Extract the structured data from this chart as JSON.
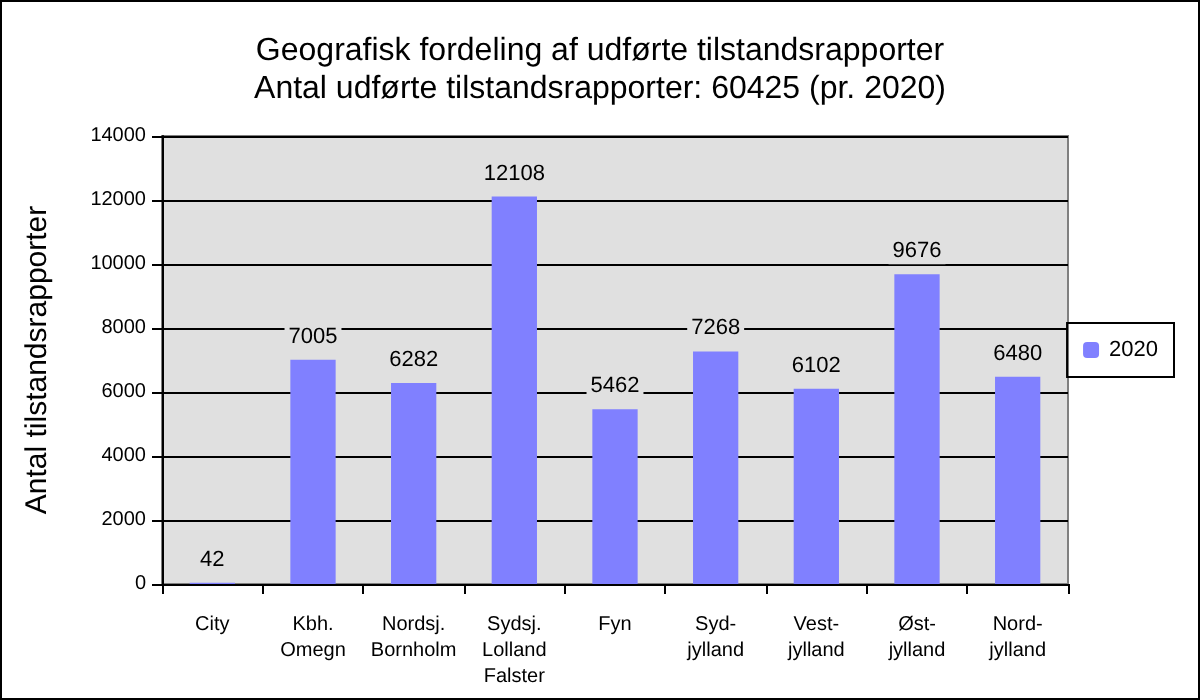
{
  "chart_data": {
    "type": "bar",
    "title": "Geografisk fordeling af udførte tilstandsrapporter",
    "subtitle": "Antal udførte tilstandsrapporter: 60425 (pr. 2020)",
    "ylabel": "Antal tilstandsrapporter",
    "categories": [
      "City",
      "Kbh.\nOmegn",
      "Nordsj.\nBornholm",
      "Sydsj.\nLolland\nFalster",
      "Fyn",
      "Syd-\njylland",
      "Vest-\njylland",
      "Øst-\njylland",
      "Nord-\njylland"
    ],
    "series": [
      {
        "name": "2020",
        "color": "#8080ff",
        "values": [
          42,
          7005,
          6282,
          12108,
          5462,
          7268,
          6102,
          9676,
          6480
        ]
      }
    ],
    "ylim": [
      0,
      14000
    ],
    "yticks": [
      0,
      2000,
      4000,
      6000,
      8000,
      10000,
      12000,
      14000
    ],
    "grid": "y",
    "legend": "right",
    "data_labels": true
  }
}
